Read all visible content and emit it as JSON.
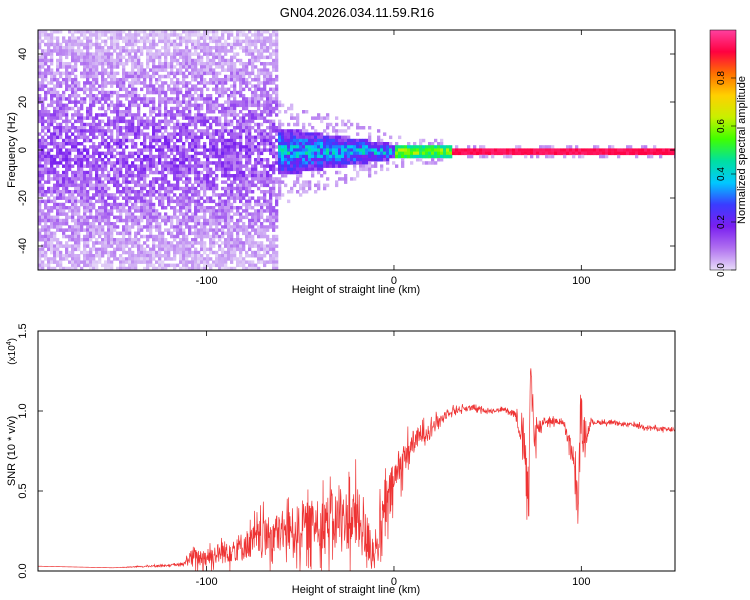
{
  "title": "GN04.2026.034.11.59.R16",
  "chart_data": [
    {
      "type": "heatmap",
      "xlabel": "Height of straight line (km)",
      "ylabel": "Frequency (Hz)",
      "xlim": [
        -190,
        150
      ],
      "ylim": [
        -50,
        50
      ],
      "x_ticks": [
        -100,
        0,
        100
      ],
      "y_ticks": [
        -40,
        -20,
        0,
        20,
        40
      ],
      "colorbar": {
        "label": "Normalized spectral amplitude",
        "range": [
          0,
          1
        ],
        "ticks": [
          "0.0",
          "0.2",
          "0.4",
          "0.6",
          "0.8"
        ],
        "tick_values": [
          0.0,
          0.2,
          0.4,
          0.6,
          0.8
        ],
        "colors": [
          "#e8dcf8",
          "#b070f0",
          "#7a1ff0",
          "#3a3cff",
          "#00c8ff",
          "#00e0a0",
          "#40ff00",
          "#c8f000",
          "#ffd000",
          "#ff7000",
          "#ff0040",
          "#ff40a0"
        ]
      },
      "regions": [
        {
          "x_range": [
            -190,
            -62
          ],
          "freq_halfwidth": 50,
          "amplitude_range": [
            0.0,
            0.2
          ],
          "description": "broadband noise"
        },
        {
          "x_range": [
            -62,
            0
          ],
          "freq_halfwidth_range": [
            10,
            3
          ],
          "amplitude_range": [
            0.1,
            0.5
          ]
        },
        {
          "x_range": [
            0,
            30
          ],
          "freq_halfwidth_range": [
            3,
            2
          ],
          "amplitude_range": [
            0.4,
            0.7
          ]
        },
        {
          "x_range": [
            30,
            150
          ],
          "freq_halfwidth": 1,
          "amplitude_range": [
            0.9,
            1.0
          ],
          "description": "narrow line at 0 Hz"
        }
      ]
    },
    {
      "type": "line",
      "xlabel": "Height of straight line (km)",
      "ylabel": "SNR (10 * v/v)",
      "y_multiplier": "(x10",
      "y_multiplier_exp": "4",
      "y_multiplier_close": ")",
      "xlim": [
        -190,
        150
      ],
      "ylim": [
        0,
        15000
      ],
      "x_ticks": [
        -100,
        0,
        100
      ],
      "y_ticks": [
        0,
        5000,
        10000,
        15000
      ],
      "y_tick_labels": [
        "0.0",
        "0.5",
        "1.0",
        "1.5"
      ],
      "series": [
        {
          "color": "#ee3333",
          "x": [
            -190,
            -150,
            -112,
            -110,
            -100,
            -90,
            -80,
            -70,
            -60,
            -50,
            -40,
            -30,
            -20,
            -15,
            -10,
            -5,
            0,
            5,
            10,
            20,
            30,
            40,
            50,
            60,
            65,
            70,
            72,
            73,
            75,
            80,
            90,
            95,
            98,
            100,
            102,
            105,
            110,
            120,
            130,
            140,
            150
          ],
          "y": [
            300,
            200,
            400,
            800,
            900,
            1200,
            1600,
            2100,
            2400,
            2700,
            3000,
            3200,
            3200,
            2200,
            1100,
            3500,
            5600,
            7000,
            8000,
            9000,
            10000,
            10200,
            10000,
            10100,
            9800,
            7500,
            4000,
            12500,
            8500,
            9400,
            9300,
            7500,
            4000,
            9800,
            8200,
            9300,
            9300,
            9200,
            9100,
            8900,
            8800
          ],
          "noise": [
            0,
            0,
            100,
            600,
            700,
            900,
            1100,
            1400,
            1600,
            1800,
            2000,
            2200,
            2500,
            2000,
            1200,
            2500,
            1600,
            1200,
            900,
            500,
            300,
            200,
            150,
            150,
            300,
            1500,
            2500,
            2500,
            1200,
            300,
            200,
            800,
            2000,
            1500,
            800,
            200,
            150,
            150,
            150,
            150,
            150
          ]
        }
      ]
    }
  ]
}
